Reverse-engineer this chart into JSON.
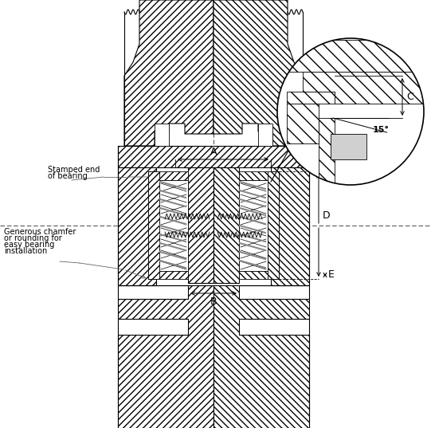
{
  "bg_color": "#ffffff",
  "line_color": "#000000",
  "gray_annotation": "#666666",
  "labels": {
    "A": "A",
    "B": "B",
    "C": "C",
    "D": "D",
    "E": "E",
    "angle": "15°",
    "stamped_end_line1": "Stamped end",
    "stamped_end_line2": "of bearing",
    "chamfer_line1": "Generous chamfer",
    "chamfer_line2": "or rounding for",
    "chamfer_line3": "easy bearing",
    "chamfer_line4": "installation"
  },
  "figure_width": 5.41,
  "figure_height": 5.37,
  "dpi": 100
}
